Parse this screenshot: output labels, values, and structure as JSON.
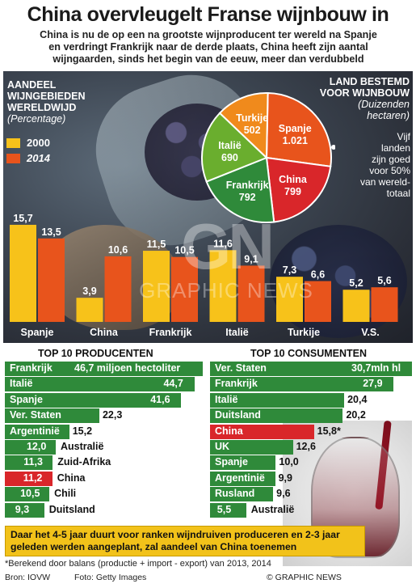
{
  "header": {
    "title": "China overvleugelt Franse wijnbouw in",
    "subtitle_lines": [
      "China is nu de op een na grootste wijnproducent ter wereld na Spanje",
      "en verdringt Frankrijk naar de derde plaats, China heeft zijn aantal",
      "wijngaarden, sinds het begin van de eeuw, meer dan verdubbeld"
    ]
  },
  "colors": {
    "year_2000": "#f7c21a",
    "year_2014": "#e8541c",
    "producers_bar": "#2f8a3a",
    "consumers_bar": "#2f8a3a",
    "china_highlight": "#d9262a",
    "note_bg": "#f2c21a"
  },
  "bar_panel": {
    "heading_lines": [
      "AANDEEL",
      "WIJNGEBIEDEN",
      "WERELDWIJD"
    ],
    "unit": "(Percentage)",
    "legend": [
      {
        "label": "2000",
        "color": "#f7c21a"
      },
      {
        "label": "2014",
        "color": "#e8541c"
      }
    ]
  },
  "pie_panel": {
    "heading_lines": [
      "LAND BESTEMD",
      "VOOR WIJNBOUW"
    ],
    "unit_lines": [
      "(Duizenden",
      "hectaren)"
    ],
    "annotation_lines": [
      "Vijf",
      "landen",
      "zijn goed",
      "voor 50%",
      "van wereld-",
      "totaal"
    ]
  },
  "watermark": {
    "logo": "GN",
    "text": "GRAPHIC NEWS"
  },
  "chart_data": [
    {
      "type": "bar",
      "title": "AANDEEL WIJNGEBIEDEN WERELDWIJD",
      "ylabel": "(Percentage)",
      "categories": [
        "Spanje",
        "China",
        "Frankrijk",
        "Italië",
        "Turkije",
        "V.S."
      ],
      "series": [
        {
          "name": "2000",
          "values": [
            15.7,
            3.9,
            11.5,
            11.6,
            7.3,
            5.2
          ],
          "labels": [
            "15,7",
            "3,9",
            "11,5",
            "11,6",
            "7,3",
            "5,2"
          ]
        },
        {
          "name": "2014",
          "values": [
            13.5,
            10.6,
            10.5,
            9.1,
            6.6,
            5.6
          ],
          "labels": [
            "13,5",
            "10,6",
            "10,5",
            "9,1",
            "6,6",
            "5,6"
          ]
        }
      ],
      "ylim": [
        0,
        17
      ]
    },
    {
      "type": "pie",
      "title": "LAND BESTEMD VOOR WIJNBOUW",
      "subtitle": "(Duizenden hectaren)",
      "slices": [
        {
          "label": "Spanje",
          "value": 1021,
          "value_text": "1.021",
          "color": "#e8541c"
        },
        {
          "label": "China",
          "value": 799,
          "value_text": "799",
          "color": "#d9262a"
        },
        {
          "label": "Frankrijk",
          "value": 792,
          "value_text": "792",
          "color": "#2f8a3a"
        },
        {
          "label": "Italië",
          "value": 690,
          "value_text": "690",
          "color": "#6aae2e"
        },
        {
          "label": "Turkije",
          "value": 502,
          "value_text": "502",
          "color": "#f08a1c"
        }
      ]
    },
    {
      "type": "bar",
      "title": "TOP 10 PRODUCENTEN",
      "unit": "miljoen hectoliter",
      "categories": [
        "Frankrijk",
        "Italië",
        "Spanje",
        "Ver. Staten",
        "Argentinië",
        "Australië",
        "Zuid-Afrika",
        "China",
        "Chili",
        "Duitsland"
      ],
      "values": [
        46.7,
        44.7,
        41.6,
        22.3,
        15.2,
        12.0,
        11.3,
        11.2,
        10.5,
        9.3
      ],
      "value_labels": [
        "46,7 miljoen hectoliter",
        "44,7",
        "41,6",
        "22,3",
        "15,2",
        "12,0",
        "11,3",
        "11,2",
        "10,5",
        "9,3"
      ]
    },
    {
      "type": "bar",
      "title": "TOP 10 CONSUMENTEN",
      "unit": "mln hl",
      "categories": [
        "Ver. Staten",
        "Frankrijk",
        "Italië",
        "Duitsland",
        "China",
        "UK",
        "Spanje",
        "Argentinië",
        "Rusland",
        "Australië"
      ],
      "values": [
        30.7,
        27.9,
        20.4,
        20.2,
        15.8,
        12.6,
        10.0,
        9.9,
        9.6,
        5.5
      ],
      "value_labels": [
        "30,7mln hl",
        "27,9",
        "20,4",
        "20,2",
        "15,8*",
        "12,6",
        "10,0",
        "9,9",
        "9,6",
        "5,5"
      ]
    }
  ],
  "sections": {
    "producers_title": "TOP 10 PRODUCENTEN",
    "consumers_title": "TOP 10 CONSUMENTEN"
  },
  "note": "Daar het 4-5 jaar duurt voor ranken wijndruiven produceren en 2-3 jaar geleden werden aangeplant, zal aandeel van China toenemen",
  "footer": {
    "footnote": "*Berekend door balans (productie + import - export) van 2013, 2014",
    "source": "Bron: IOVW",
    "photo": "Foto: Getty Images",
    "copyright": "© GRAPHIC NEWS"
  }
}
